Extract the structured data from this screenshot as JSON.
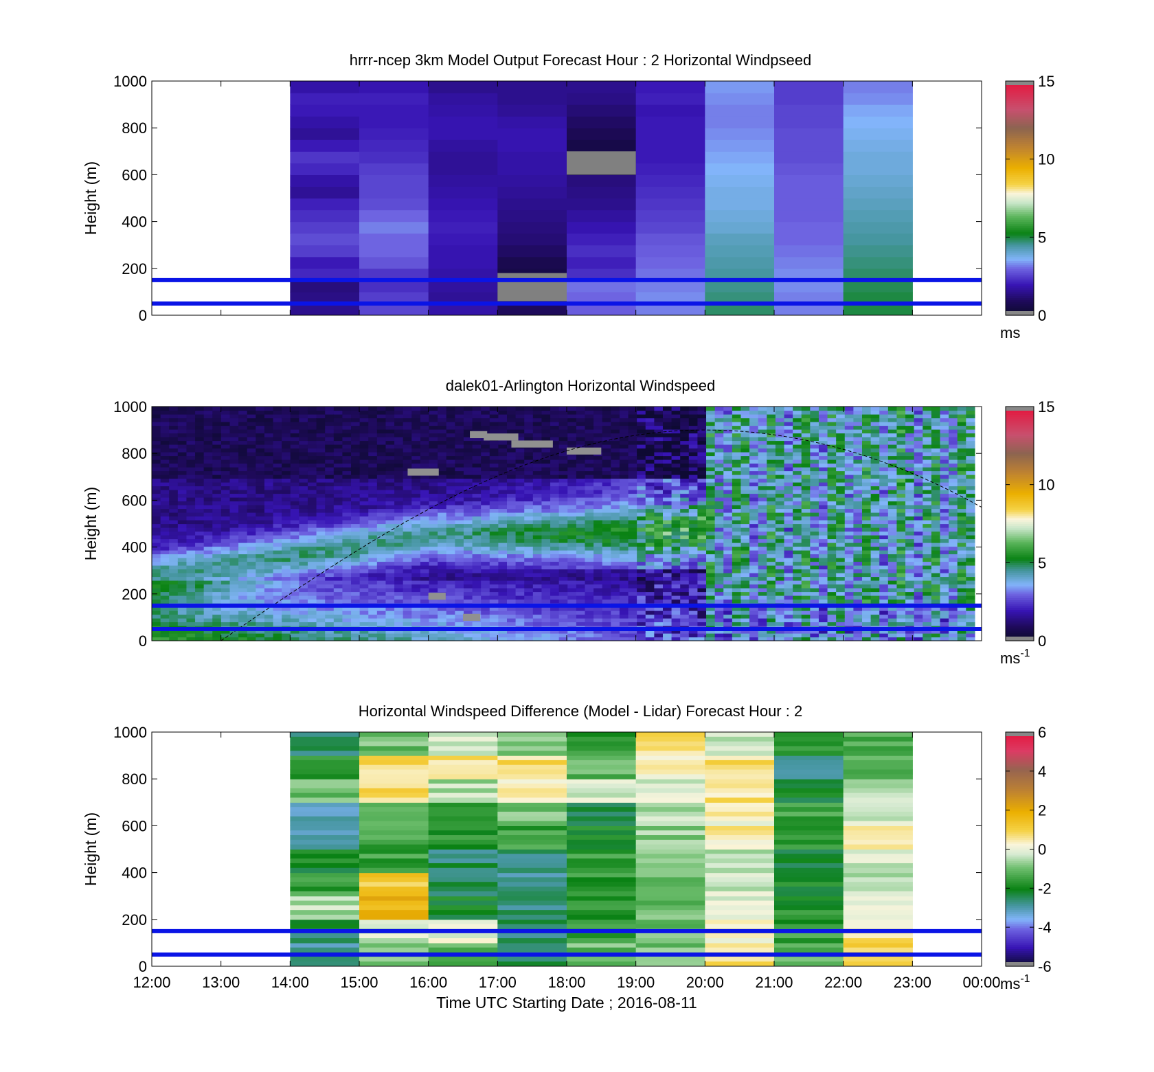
{
  "x_axis": {
    "label": "Time UTC  Starting Date ; 2016-08-11",
    "ticks": [
      "12:00",
      "13:00",
      "14:00",
      "15:00",
      "16:00",
      "17:00",
      "18:00",
      "19:00",
      "20:00",
      "21:00",
      "22:00",
      "23:00",
      "00:00"
    ],
    "range_hours": [
      12,
      24
    ]
  },
  "reference_lines_m": [
    50,
    150
  ],
  "reference_line_color": "#0a14e6",
  "chart_data": [
    {
      "type": "heatmap",
      "title": "hrrr-ncep 3km Model Output   Forecast Hour : 2 Horizontal Windpseed",
      "ylabel": "Height (m)",
      "ylim": [
        0,
        1000
      ],
      "yticks": [
        "0",
        "200",
        "400",
        "600",
        "800",
        "1000"
      ],
      "colorbar": {
        "min": 0,
        "max": 15,
        "ticks": [
          "0",
          "5",
          "10",
          "15"
        ],
        "unit": "ms",
        "unit_sup": "",
        "scale": "speed"
      },
      "x_hours": [
        14,
        15,
        16,
        17,
        18,
        19,
        20,
        21,
        22
      ],
      "y_bins_m": [
        25,
        75,
        125,
        175,
        225,
        275,
        325,
        375,
        425,
        475,
        525,
        575,
        625,
        675,
        725,
        775,
        825,
        875,
        925,
        975
      ],
      "values_ms": [
        [
          1.5,
          1.4,
          1.3,
          2.2,
          2.0,
          2.5,
          2.7,
          2.5,
          2.3,
          2.1,
          1.6,
          1.8,
          2.2,
          2.4,
          2.0,
          1.6,
          1.8,
          2.0,
          2.1,
          1.8
        ],
        [
          2.6,
          2.5,
          2.3,
          2.4,
          2.8,
          3.0,
          3.0,
          3.2,
          3.0,
          2.7,
          2.6,
          2.6,
          2.5,
          2.3,
          2.2,
          2.1,
          2.0,
          2.0,
          2.1,
          1.9
        ],
        [
          1.8,
          1.6,
          1.7,
          1.8,
          1.9,
          1.9,
          2.0,
          2.1,
          2.0,
          1.9,
          1.8,
          1.7,
          1.6,
          1.6,
          1.7,
          1.9,
          1.9,
          1.8,
          1.7,
          1.5
        ],
        [
          0.9,
          0.8,
          0.5,
          0.6,
          0.7,
          1.0,
          1.2,
          1.3,
          1.4,
          1.5,
          1.6,
          1.7,
          1.8,
          1.8,
          1.9,
          1.9,
          1.8,
          1.6,
          1.5,
          1.5
        ],
        [
          2.9,
          3.0,
          3.1,
          2.3,
          2.1,
          2.3,
          2.1,
          1.9,
          1.7,
          1.5,
          1.4,
          1.3,
          0.4,
          0.5,
          0.6,
          0.8,
          1.0,
          1.2,
          1.4,
          1.5
        ],
        [
          3.2,
          3.3,
          3.2,
          3.1,
          3.0,
          2.9,
          2.8,
          2.6,
          2.5,
          2.4,
          2.3,
          2.2,
          2.1,
          2.0,
          2.0,
          2.0,
          2.0,
          1.9,
          2.1,
          2.0
        ],
        [
          4.8,
          4.7,
          4.6,
          4.5,
          4.4,
          4.3,
          4.2,
          4.0,
          3.9,
          3.8,
          3.8,
          3.7,
          3.6,
          3.5,
          3.4,
          3.3,
          3.2,
          3.2,
          3.3,
          3.4
        ],
        [
          3.2,
          3.2,
          3.3,
          3.3,
          3.2,
          3.1,
          3.0,
          3.0,
          2.9,
          2.9,
          2.9,
          2.9,
          2.8,
          2.7,
          2.7,
          2.7,
          2.6,
          2.6,
          2.5,
          2.5
        ],
        [
          5.0,
          5.0,
          4.9,
          4.8,
          4.7,
          4.6,
          4.5,
          4.4,
          4.3,
          4.2,
          4.1,
          4.0,
          3.9,
          3.9,
          3.8,
          3.7,
          3.6,
          3.5,
          3.3,
          3.2
        ]
      ]
    },
    {
      "type": "heatmap",
      "title": "dalek01-Arlington  Horizontal Windspeed",
      "ylabel": "Height (m)",
      "ylim": [
        0,
        1000
      ],
      "yticks": [
        "0",
        "200",
        "400",
        "600",
        "800",
        "1000"
      ],
      "colorbar": {
        "min": 0,
        "max": 15,
        "ticks": [
          "0",
          "5",
          "10",
          "15"
        ],
        "unit": "ms",
        "unit_sup": "-1",
        "scale": "speed"
      },
      "x_range_hours": [
        12,
        23.9
      ],
      "y_range_m": [
        0,
        1000
      ],
      "boundary_layer_curve": {
        "start": [
          13,
          0
        ],
        "peak": [
          20,
          900
        ],
        "end": [
          24,
          570
        ]
      },
      "values_ms": "dense lidar field (not individually labeled)"
    },
    {
      "type": "heatmap",
      "title": "Horizontal Windspeed Difference (Model - Lidar) Forecast Hour : 2",
      "ylabel": "Height (m)",
      "ylim": [
        0,
        1000
      ],
      "yticks": [
        "0",
        "200",
        "400",
        "600",
        "800",
        "1000"
      ],
      "colorbar": {
        "min": -6,
        "max": 6,
        "ticks": [
          "-6",
          "-4",
          "-2",
          "0",
          "2",
          "4",
          "6"
        ],
        "unit": "ms",
        "unit_sup": "-1",
        "scale": "diff"
      },
      "x_hours": [
        14,
        15,
        16,
        17,
        18,
        19,
        20,
        21,
        22
      ],
      "y_bins_m": [
        50,
        150,
        250,
        350,
        450,
        550,
        650,
        750,
        850,
        950
      ],
      "values_ms": [
        [
          -2.8,
          -2.4,
          -0.5,
          -1.5,
          -2.0,
          -2.8,
          -2.9,
          -1.0,
          -1.5,
          -2.5
        ],
        [
          -1.0,
          -0.3,
          1.8,
          1.2,
          -1.5,
          -1.5,
          -0.8,
          0.8,
          0.8,
          -1.0
        ],
        [
          -1.2,
          0.0,
          -2.0,
          -2.5,
          -2.5,
          -1.8,
          -2.0,
          -0.5,
          0.6,
          -0.2
        ],
        [
          -2.5,
          -2.6,
          -2.6,
          -2.7,
          -2.6,
          -1.5,
          -0.8,
          0.4,
          0.8,
          -0.8
        ],
        [
          -1.0,
          -1.5,
          -1.8,
          -1.6,
          -1.5,
          -2.0,
          -2.4,
          -0.3,
          -1.2,
          -1.6
        ],
        [
          -1.0,
          -1.0,
          -1.0,
          -1.2,
          -1.0,
          -0.7,
          -0.5,
          -0.1,
          0.5,
          0.6
        ],
        [
          0.8,
          0.3,
          0.0,
          -0.3,
          -0.6,
          0.4,
          0.3,
          0.6,
          0.7,
          -0.3
        ],
        [
          -1.2,
          -1.6,
          -1.8,
          -2.0,
          -2.2,
          -1.7,
          -1.5,
          -2.1,
          -2.6,
          -1.6
        ],
        [
          1.0,
          0.6,
          0.2,
          -0.5,
          -0.2,
          0.5,
          -0.3,
          -0.6,
          -1.2,
          -1.4
        ]
      ]
    }
  ]
}
